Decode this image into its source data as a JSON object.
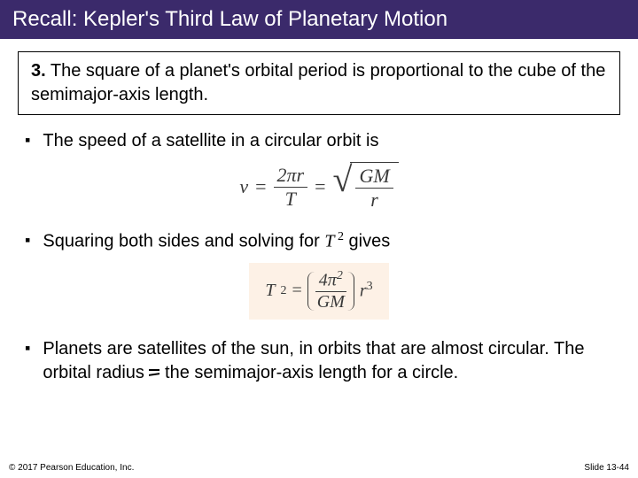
{
  "title": "Recall: Kepler's Third Law of Planetary Motion",
  "law": {
    "number": "3.",
    "text": "The square of a planet's orbital period is proportional to the cube of the semimajor-axis length."
  },
  "bullets": {
    "b1": "The speed of a satellite in a circular orbit is",
    "b2_a": "Squaring both sides and solving for ",
    "b2_T": "T",
    "b2_exp": " 2",
    "b2_b": " gives",
    "b3": "Planets are satellites of the sun, in orbits that are almost circular. The orbital radius ",
    "b3_b": " the semimajor-axis length for a circle."
  },
  "formula1": {
    "v": "v",
    "eq": "=",
    "num1": "2πr",
    "den1": "T",
    "num2": "GM",
    "den2": "r"
  },
  "formula2": {
    "T": "T",
    "exp2": "2",
    "eq": "=",
    "num": "4π",
    "numexp": "2",
    "den": "GM",
    "r": "r",
    "rexp": "3"
  },
  "footer": {
    "copyright": "© 2017 Pearson Education, Inc.",
    "slide": "Slide 13-44"
  },
  "colors": {
    "title_bg": "#3b2a6b",
    "formula2_bg": "#fdf1e6"
  }
}
